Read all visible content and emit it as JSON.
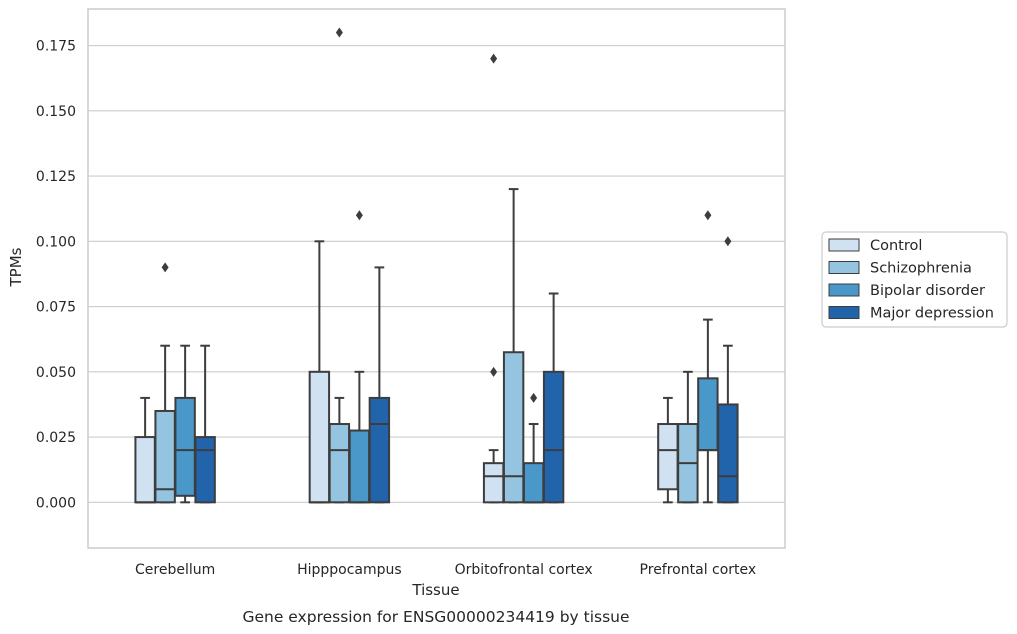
{
  "chart_data": {
    "type": "boxplot",
    "title": "",
    "caption": "Gene expression for ENSG00000234419 by tissue",
    "xlabel": "Tissue",
    "ylabel": "TPMs",
    "ylim": [
      -0.0175,
      0.189
    ],
    "yticks": [
      0.0,
      0.025,
      0.05,
      0.075,
      0.1,
      0.125,
      0.15,
      0.175
    ],
    "ytick_labels": [
      "0.000",
      "0.025",
      "0.050",
      "0.075",
      "0.100",
      "0.125",
      "0.150",
      "0.175"
    ],
    "grid": true,
    "legend_position": "right",
    "categories": [
      "Cerebellum",
      "Hipppocampus",
      "Orbitofrontal cortex",
      "Prefrontal cortex"
    ],
    "series": [
      {
        "name": "Control",
        "color": "#d0e1f2",
        "boxes": [
          {
            "whislo": 0.0,
            "q1": 0.0,
            "med": 0.0,
            "q3": 0.025,
            "whishi": 0.04,
            "fliers": []
          },
          {
            "whislo": 0.0,
            "q1": 0.0,
            "med": 0.0,
            "q3": 0.05,
            "whishi": 0.1,
            "fliers": []
          },
          {
            "whislo": 0.0,
            "q1": 0.0,
            "med": 0.01,
            "q3": 0.015,
            "whishi": 0.02,
            "fliers": [
              0.05,
              0.17
            ]
          },
          {
            "whislo": 0.0,
            "q1": 0.005,
            "med": 0.02,
            "q3": 0.03,
            "whishi": 0.04,
            "fliers": []
          }
        ]
      },
      {
        "name": "Schizophrenia",
        "color": "#94c4df",
        "boxes": [
          {
            "whislo": 0.0,
            "q1": 0.0,
            "med": 0.005,
            "q3": 0.035,
            "whishi": 0.06,
            "fliers": [
              0.09
            ]
          },
          {
            "whislo": 0.0,
            "q1": 0.0,
            "med": 0.02,
            "q3": 0.03,
            "whishi": 0.04,
            "fliers": [
              0.18
            ]
          },
          {
            "whislo": 0.0,
            "q1": 0.0,
            "med": 0.01,
            "q3": 0.0575,
            "whishi": 0.12,
            "fliers": []
          },
          {
            "whislo": 0.0,
            "q1": 0.0,
            "med": 0.015,
            "q3": 0.03,
            "whishi": 0.05,
            "fliers": []
          }
        ]
      },
      {
        "name": "Bipolar disorder",
        "color": "#4a98c9",
        "boxes": [
          {
            "whislo": 0.0,
            "q1": 0.0025,
            "med": 0.02,
            "q3": 0.04,
            "whishi": 0.06,
            "fliers": []
          },
          {
            "whislo": 0.0,
            "q1": 0.0,
            "med": 0.0,
            "q3": 0.0275,
            "whishi": 0.05,
            "fliers": [
              0.11
            ]
          },
          {
            "whislo": 0.0,
            "q1": 0.0,
            "med": 0.0,
            "q3": 0.015,
            "whishi": 0.03,
            "fliers": [
              0.04
            ]
          },
          {
            "whislo": 0.0,
            "q1": 0.02,
            "med": 0.02,
            "q3": 0.0475,
            "whishi": 0.07,
            "fliers": [
              0.11
            ]
          }
        ]
      },
      {
        "name": "Major depression",
        "color": "#2164ab",
        "boxes": [
          {
            "whislo": 0.0,
            "q1": 0.0,
            "med": 0.02,
            "q3": 0.025,
            "whishi": 0.06,
            "fliers": []
          },
          {
            "whislo": 0.0,
            "q1": 0.0,
            "med": 0.03,
            "q3": 0.04,
            "whishi": 0.09,
            "fliers": []
          },
          {
            "whislo": 0.0,
            "q1": 0.0,
            "med": 0.02,
            "q3": 0.05,
            "whishi": 0.08,
            "fliers": []
          },
          {
            "whislo": 0.0,
            "q1": 0.0,
            "med": 0.01,
            "q3": 0.0375,
            "whishi": 0.06,
            "fliers": [
              0.1
            ]
          }
        ]
      }
    ],
    "colors": {
      "grid": "#cccccc",
      "spine": "#cccccc",
      "box_edge": "#3d3d3d",
      "legend_border": "#cccccc"
    }
  }
}
